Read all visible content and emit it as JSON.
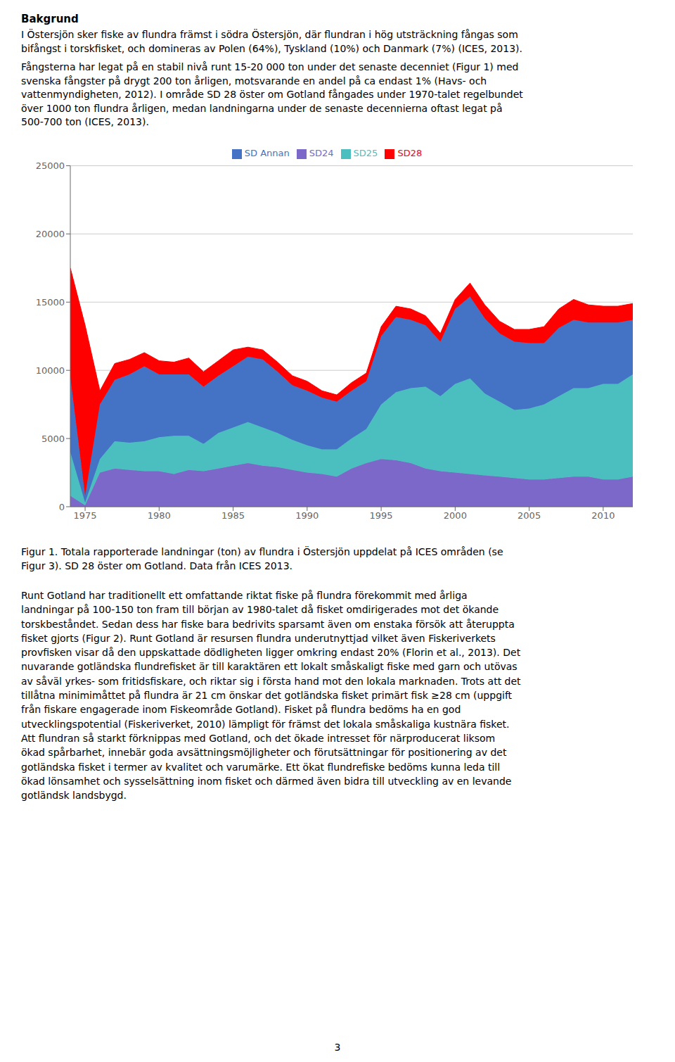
{
  "chart_data": {
    "type": "area",
    "stacked": true,
    "annotations": [
      "Bakgrund",
      "I Östersjön sker fiske av flundra främst i södra Östersjön, där flundran i hög utsträckning fångas som\nbifångst i torskfisket, och domineras av Polen (64%), Tyskland (10%) och Danmark (7%) (ICES, 2013).",
      "Fångsterna har legat på en stabil nivå runt 15-20 000 ton under det senaste decenniet (Figur 1) med\nsvenska fångster på drygt 200 ton årligen, motsvarande en andel på ca endast 1% (Havs- och\nvattenmyndigheten, 2012). I område SD 28 öster om Gotland fångades under 1970-talet regelbundet\növer 1000 ton flundra årligen, medan landningarna under de senaste decennierna oftast legat på\n500-700 ton (ICES, 2013).",
      "Figur 1. Totala rapporterade landningar (ton) av flundra i Östersjön uppdelat på ICES områden (se\nFigur 3). SD 28 öster om Gotland. Data från ICES 2013.",
      "Runt Gotland har traditionellt ett omfattande riktat fiske på flundra förekommit med årliga\nlandningar på 100-150 ton fram till början av 1980-talet då fisket omdirigerades mot det ökande\ntorskbeståndet. Sedan dess har fiske bara bedrivits sparsamt även om enstaka försök att återuppta\nfisket gjorts (Figur 2). Runt Gotland är resursen flundra underutnyttjad vilket även Fiskeriverkets\nprovfisken visar då den uppskattade dödligheten ligger omkring endast 20% (Florin et al., 2013). Det\nnuvarande gotländska flundrefisket är till karaktären ett lokalt småskaligt fiske med garn och utövas\nav såväl yrkes- som fritidsfiskare, och riktar sig i första hand mot den lokala marknaden. Trots att det\ntillåtna minimimåttet på flundra är 21 cm önskar det gotländska fisket primärt fisk ≥28 cm (uppgift\nfrån fiskare engagerade inom Fiskeområde Gotland). Fisket på flundra bedöms ha en god\nutvecklingspotential (Fiskeriverket, 2010) lämpligt för främst det lokala småskaliga kustnära fisket.\nAtt flundran så starkt förknippas med Gotland, och det ökade intresset för närproducerat liksom\nökad spårbarhet, innebär goda avsättningsmöjligheter och förutsättningar för positionering av det\ngotländska fisket i termer av kvalitet och varumärke. Ett ökat flundrefiske bedöms kunna leda till\nökad lönsamhet och sysselsättning inom fisket och därmed även bidra till utveckling av en levande\ngotländsk landsbygd.",
      "3"
    ],
    "x": [
      1974,
      1975,
      1976,
      1977,
      1978,
      1979,
      1980,
      1981,
      1982,
      1983,
      1984,
      1985,
      1986,
      1987,
      1988,
      1989,
      1990,
      1991,
      1992,
      1993,
      1994,
      1995,
      1996,
      1997,
      1998,
      1999,
      2000,
      2001,
      2002,
      2003,
      2004,
      2005,
      2006,
      2007,
      2008,
      2009,
      2010,
      2011,
      2012
    ],
    "xlim": [
      1974,
      2012
    ],
    "xticks": [
      1975,
      1980,
      1985,
      1990,
      1995,
      2000,
      2005,
      2010
    ],
    "ylim": [
      0,
      25000
    ],
    "yticks": [
      0,
      5000,
      10000,
      15000,
      20000,
      25000
    ],
    "grid": true,
    "legend": "top",
    "series": [
      {
        "name": "SD24",
        "color": "#7B68C8",
        "values": [
          800,
          100,
          2500,
          2800,
          2700,
          2600,
          2600,
          2400,
          2700,
          2600,
          2800,
          3000,
          3200,
          3000,
          2900,
          2700,
          2500,
          2400,
          2200,
          2800,
          3200,
          3500,
          3400,
          3200,
          2800,
          2600,
          2500,
          2400,
          2300,
          2200,
          2100,
          2000,
          2000,
          2100,
          2200,
          2200,
          2000,
          2000,
          2200
        ]
      },
      {
        "name": "SD25",
        "color": "#4BBFBF",
        "values": [
          3200,
          200,
          1000,
          2000,
          2000,
          2200,
          2500,
          2800,
          2500,
          2000,
          2600,
          2800,
          3000,
          2800,
          2500,
          2200,
          2000,
          1800,
          2000,
          2200,
          2500,
          4000,
          5000,
          5500,
          6000,
          5500,
          6500,
          7000,
          6000,
          5500,
          5000,
          5200,
          5500,
          6000,
          6500,
          6500,
          7000,
          7000,
          7500
        ]
      },
      {
        "name": "SD Annan",
        "color": "#4472C4",
        "values": [
          5500,
          500,
          4000,
          4500,
          5000,
          5500,
          4600,
          4500,
          4500,
          4200,
          4200,
          4500,
          4800,
          5000,
          4500,
          4000,
          4000,
          3800,
          3500,
          3500,
          3500,
          5000,
          5500,
          5000,
          4500,
          4000,
          5500,
          6000,
          5500,
          5000,
          5000,
          4800,
          4500,
          5000,
          5000,
          4800,
          4500,
          4500,
          4000
        ]
      },
      {
        "name": "SD28",
        "color": "#FF0000",
        "values": [
          8000,
          12500,
          1000,
          1200,
          1100,
          1000,
          1000,
          900,
          1200,
          1100,
          1100,
          1200,
          700,
          700,
          700,
          700,
          700,
          500,
          500,
          600,
          600,
          700,
          800,
          800,
          700,
          600,
          700,
          1000,
          1000,
          900,
          900,
          1000,
          1200,
          1400,
          1500,
          1300,
          1200,
          1200,
          1200
        ]
      }
    ]
  }
}
